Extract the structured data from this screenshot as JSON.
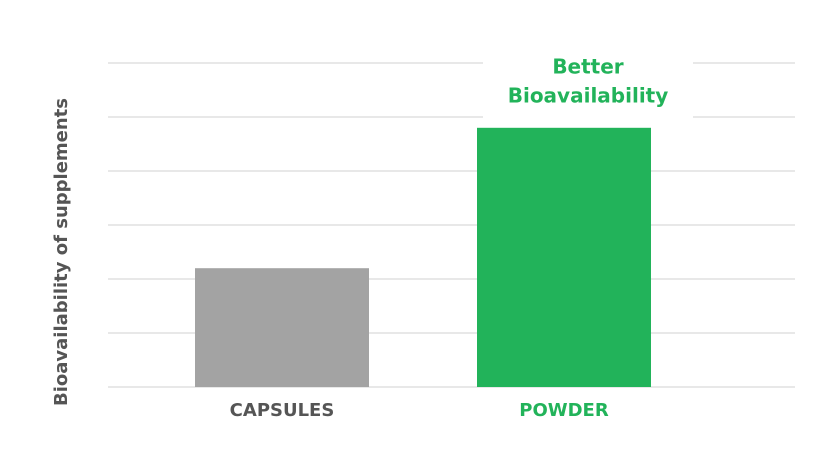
{
  "chart_data": {
    "type": "bar",
    "y_label": "Bioavailability of supplements",
    "categories": [
      "CAPSULES",
      "POWDER"
    ],
    "values": [
      2.2,
      4.8
    ],
    "colors": [
      "#a3a3a3",
      "#22b35a"
    ],
    "label_colors": [
      "#555555",
      "#22b35a"
    ],
    "annotation": [
      "Better",
      "Bioavailability"
    ],
    "annotation_color": "#22b35a",
    "ylim": [
      0,
      6
    ],
    "yticks": [
      0,
      1,
      2,
      3,
      4,
      5,
      6
    ],
    "grid": true
  }
}
